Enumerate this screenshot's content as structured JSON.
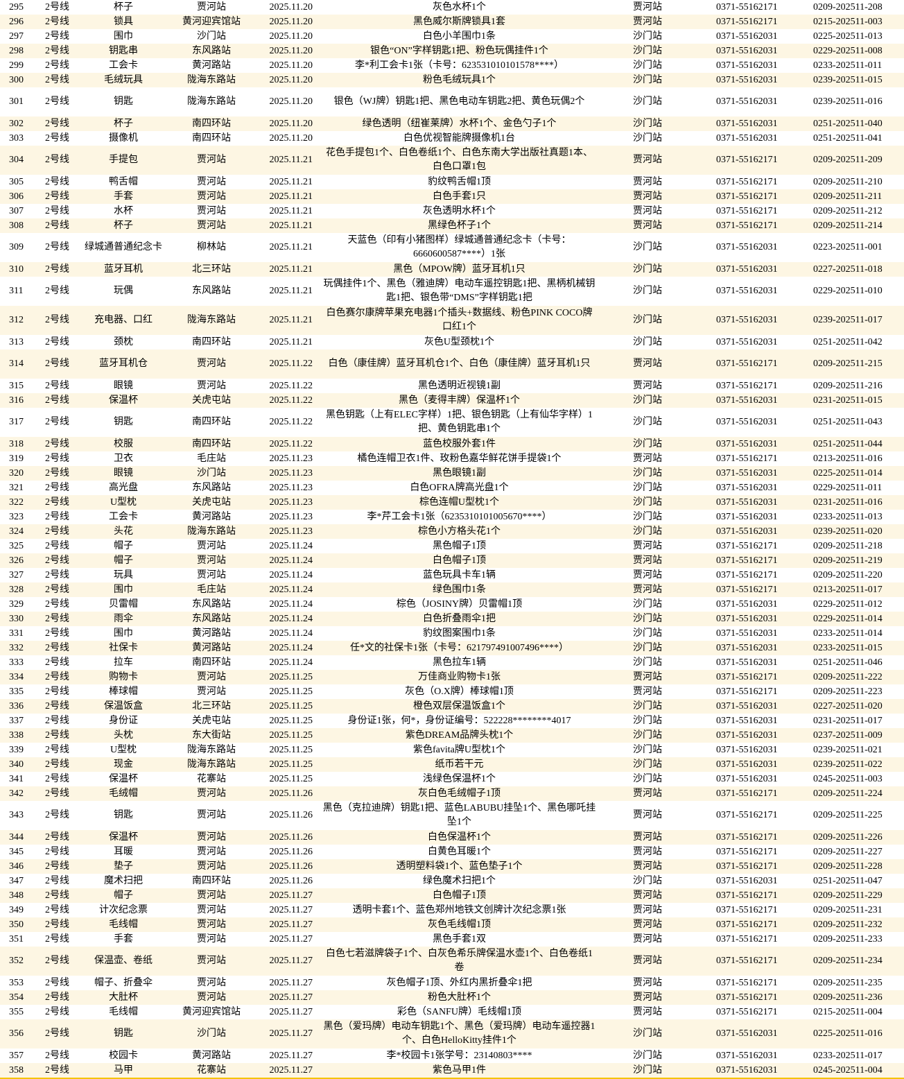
{
  "colors": {
    "alt_row": "#fdf6e3",
    "bottom_border": "#f5c400"
  },
  "rows": [
    {
      "no": "295",
      "line": "2号线",
      "item": "杯子",
      "found": "贾河站",
      "date": "2025.11.20",
      "desc": "灰色水杯1个",
      "claim": "贾河站",
      "phone": "0371-55162171",
      "id": "0209-202511-208"
    },
    {
      "no": "296",
      "line": "2号线",
      "item": "锁具",
      "found": "黄河迎宾馆站",
      "date": "2025.11.20",
      "desc": "黑色威尔斯牌锁具1套",
      "claim": "贾河站",
      "phone": "0371-55162171",
      "id": "0215-202511-003"
    },
    {
      "no": "297",
      "line": "2号线",
      "item": "围巾",
      "found": "沙门站",
      "date": "2025.11.20",
      "desc": "白色小羊围巾1条",
      "claim": "沙门站",
      "phone": "0371-55162031",
      "id": "0225-202511-013"
    },
    {
      "no": "298",
      "line": "2号线",
      "item": "钥匙串",
      "found": "东风路站",
      "date": "2025.11.20",
      "desc": "银色“ON”字样钥匙1把、粉色玩偶挂件1个",
      "claim": "沙门站",
      "phone": "0371-55162031",
      "id": "0229-202511-008"
    },
    {
      "no": "299",
      "line": "2号线",
      "item": "工会卡",
      "found": "黄河路站",
      "date": "2025.11.20",
      "desc": "李*利工会卡1张（卡号：623531010101578****）",
      "claim": "沙门站",
      "phone": "0371-55162031",
      "id": "0233-202511-011"
    },
    {
      "no": "300",
      "line": "2号线",
      "item": "毛绒玩具",
      "found": "陇海东路站",
      "date": "2025.11.20",
      "desc": "粉色毛绒玩具1个",
      "claim": "沙门站",
      "phone": "0371-55162031",
      "id": "0239-202511-015"
    },
    {
      "no": "301",
      "line": "2号线",
      "item": "钥匙",
      "found": "陇海东路站",
      "date": "2025.11.20",
      "desc": "银色（WJ牌）钥匙1把、黑色电动车钥匙2把、黄色玩偶2个",
      "claim": "沙门站",
      "phone": "0371-55162031",
      "id": "0239-202511-016",
      "tall": true
    },
    {
      "no": "302",
      "line": "2号线",
      "item": "杯子",
      "found": "南四环站",
      "date": "2025.11.20",
      "desc": "绿色透明（纽崔莱牌）水杯1个、金色勺子1个",
      "claim": "沙门站",
      "phone": "0371-55162031",
      "id": "0251-202511-040"
    },
    {
      "no": "303",
      "line": "2号线",
      "item": "摄像机",
      "found": "南四环站",
      "date": "2025.11.20",
      "desc": "白色优视智能牌摄像机1台",
      "claim": "沙门站",
      "phone": "0371-55162031",
      "id": "0251-202511-041"
    },
    {
      "no": "304",
      "line": "2号线",
      "item": "手提包",
      "found": "贾河站",
      "date": "2025.11.21",
      "desc": "花色手提包1个、白色卷纸1个、白色东南大学出版社真题1本、白色口罩1包",
      "claim": "贾河站",
      "phone": "0371-55162171",
      "id": "0209-202511-209",
      "tall": true
    },
    {
      "no": "305",
      "line": "2号线",
      "item": "鸭舌帽",
      "found": "贾河站",
      "date": "2025.11.21",
      "desc": "豹纹鸭舌帽1顶",
      "claim": "贾河站",
      "phone": "0371-55162171",
      "id": "0209-202511-210"
    },
    {
      "no": "306",
      "line": "2号线",
      "item": "手套",
      "found": "贾河站",
      "date": "2025.11.21",
      "desc": "白色手套1只",
      "claim": "贾河站",
      "phone": "0371-55162171",
      "id": "0209-202511-211"
    },
    {
      "no": "307",
      "line": "2号线",
      "item": "水杯",
      "found": "贾河站",
      "date": "2025.11.21",
      "desc": "灰色透明水杯1个",
      "claim": "贾河站",
      "phone": "0371-55162171",
      "id": "0209-202511-212"
    },
    {
      "no": "308",
      "line": "2号线",
      "item": "杯子",
      "found": "贾河站",
      "date": "2025.11.21",
      "desc": "黑绿色杯子1个",
      "claim": "贾河站",
      "phone": "0371-55162171",
      "id": "0209-202511-214"
    },
    {
      "no": "309",
      "line": "2号线",
      "item": "绿城通普通纪念卡",
      "found": "柳林站",
      "date": "2025.11.21",
      "desc": "天蓝色（印有小猪图样）绿城通普通纪念卡（卡号：6660600587****）1张",
      "claim": "沙门站",
      "phone": "0371-55162031",
      "id": "0223-202511-001",
      "tall": true
    },
    {
      "no": "310",
      "line": "2号线",
      "item": "蓝牙耳机",
      "found": "北三环站",
      "date": "2025.11.21",
      "desc": "黑色（MPOW牌）蓝牙耳机1只",
      "claim": "沙门站",
      "phone": "0371-55162031",
      "id": "0227-202511-018"
    },
    {
      "no": "311",
      "line": "2号线",
      "item": "玩偶",
      "found": "东风路站",
      "date": "2025.11.21",
      "desc": "玩偶挂件1个、黑色（雅迪牌）电动车遥控钥匙1把、黑柄机械钥匙1把、银色带“DMS”字样钥匙1把",
      "claim": "沙门站",
      "phone": "0371-55162031",
      "id": "0229-202511-010",
      "tall": true
    },
    {
      "no": "312",
      "line": "2号线",
      "item": "充电器、口红",
      "found": "陇海东路站",
      "date": "2025.11.21",
      "desc": "白色赛尔康牌苹果充电器1个插头+数据线、粉色PINK COCO牌口红1个",
      "claim": "沙门站",
      "phone": "0371-55162031",
      "id": "0239-202511-017",
      "tall": true
    },
    {
      "no": "313",
      "line": "2号线",
      "item": "颈枕",
      "found": "南四环站",
      "date": "2025.11.21",
      "desc": "灰色U型颈枕1个",
      "claim": "沙门站",
      "phone": "0371-55162031",
      "id": "0251-202511-042"
    },
    {
      "no": "314",
      "line": "2号线",
      "item": "蓝牙耳机仓",
      "found": "贾河站",
      "date": "2025.11.22",
      "desc": "白色（康佳牌）蓝牙耳机仓1个、白色（康佳牌）蓝牙耳机1只",
      "claim": "贾河站",
      "phone": "0371-55162171",
      "id": "0209-202511-215",
      "tall": true
    },
    {
      "no": "315",
      "line": "2号线",
      "item": "眼镜",
      "found": "贾河站",
      "date": "2025.11.22",
      "desc": "黑色透明近视镜1副",
      "claim": "贾河站",
      "phone": "0371-55162171",
      "id": "0209-202511-216"
    },
    {
      "no": "316",
      "line": "2号线",
      "item": "保温杯",
      "found": "关虎屯站",
      "date": "2025.11.22",
      "desc": "黑色（麦得丰牌）保温杯1个",
      "claim": "沙门站",
      "phone": "0371-55162031",
      "id": "0231-202511-015"
    },
    {
      "no": "317",
      "line": "2号线",
      "item": "钥匙",
      "found": "南四环站",
      "date": "2025.11.22",
      "desc": "黑色钥匙（上有ELEC字样）1把、银色钥匙（上有仙华字样）1把、黄色钥匙串1个",
      "claim": "沙门站",
      "phone": "0371-55162031",
      "id": "0251-202511-043",
      "tall": true
    },
    {
      "no": "318",
      "line": "2号线",
      "item": "校服",
      "found": "南四环站",
      "date": "2025.11.22",
      "desc": "蓝色校服外套1件",
      "claim": "沙门站",
      "phone": "0371-55162031",
      "id": "0251-202511-044"
    },
    {
      "no": "319",
      "line": "2号线",
      "item": "卫衣",
      "found": "毛庄站",
      "date": "2025.11.23",
      "desc": "橘色连帽卫衣1件、玫粉色嘉华鲜花饼手提袋1个",
      "claim": "贾河站",
      "phone": "0371-55162171",
      "id": "0213-202511-016"
    },
    {
      "no": "320",
      "line": "2号线",
      "item": "眼镜",
      "found": "沙门站",
      "date": "2025.11.23",
      "desc": "黑色眼镜1副",
      "claim": "沙门站",
      "phone": "0371-55162031",
      "id": "0225-202511-014"
    },
    {
      "no": "321",
      "line": "2号线",
      "item": "高光盘",
      "found": "东风路站",
      "date": "2025.11.23",
      "desc": "白色OFRA牌高光盘1个",
      "claim": "沙门站",
      "phone": "0371-55162031",
      "id": "0229-202511-011"
    },
    {
      "no": "322",
      "line": "2号线",
      "item": "U型枕",
      "found": "关虎屯站",
      "date": "2025.11.23",
      "desc": "棕色连帽U型枕1个",
      "claim": "沙门站",
      "phone": "0371-55162031",
      "id": "0231-202511-016"
    },
    {
      "no": "323",
      "line": "2号线",
      "item": "工会卡",
      "found": "黄河路站",
      "date": "2025.11.23",
      "desc": "李*芹工会卡1张（6235310101005670****）",
      "claim": "沙门站",
      "phone": "0371-55162031",
      "id": "0233-202511-013"
    },
    {
      "no": "324",
      "line": "2号线",
      "item": "头花",
      "found": "陇海东路站",
      "date": "2025.11.23",
      "desc": "棕色小方格头花1个",
      "claim": "沙门站",
      "phone": "0371-55162031",
      "id": "0239-202511-020"
    },
    {
      "no": "325",
      "line": "2号线",
      "item": "帽子",
      "found": "贾河站",
      "date": "2025.11.24",
      "desc": "黑色帽子1顶",
      "claim": "贾河站",
      "phone": "0371-55162171",
      "id": "0209-202511-218"
    },
    {
      "no": "326",
      "line": "2号线",
      "item": "帽子",
      "found": "贾河站",
      "date": "2025.11.24",
      "desc": "白色帽子1顶",
      "claim": "贾河站",
      "phone": "0371-55162171",
      "id": "0209-202511-219"
    },
    {
      "no": "327",
      "line": "2号线",
      "item": "玩具",
      "found": "贾河站",
      "date": "2025.11.24",
      "desc": "蓝色玩具卡车1辆",
      "claim": "贾河站",
      "phone": "0371-55162171",
      "id": "0209-202511-220"
    },
    {
      "no": "328",
      "line": "2号线",
      "item": "围巾",
      "found": "毛庄站",
      "date": "2025.11.24",
      "desc": "绿色围巾1条",
      "claim": "贾河站",
      "phone": "0371-55162171",
      "id": "0213-202511-017"
    },
    {
      "no": "329",
      "line": "2号线",
      "item": "贝雷帽",
      "found": "东风路站",
      "date": "2025.11.24",
      "desc": "棕色（JOSINY牌）贝雷帽1顶",
      "claim": "沙门站",
      "phone": "0371-55162031",
      "id": "0229-202511-012"
    },
    {
      "no": "330",
      "line": "2号线",
      "item": "雨伞",
      "found": "东风路站",
      "date": "2025.11.24",
      "desc": "白色折叠雨伞1把",
      "claim": "沙门站",
      "phone": "0371-55162031",
      "id": "0229-202511-014"
    },
    {
      "no": "331",
      "line": "2号线",
      "item": "围巾",
      "found": "黄河路站",
      "date": "2025.11.24",
      "desc": "豹纹图案围巾1条",
      "claim": "沙门站",
      "phone": "0371-55162031",
      "id": "0233-202511-014"
    },
    {
      "no": "332",
      "line": "2号线",
      "item": "社保卡",
      "found": "黄河路站",
      "date": "2025.11.24",
      "desc": "任*文的社保卡1张（卡号：621797491007496****）",
      "claim": "沙门站",
      "phone": "0371-55162031",
      "id": "0233-202511-015"
    },
    {
      "no": "333",
      "line": "2号线",
      "item": "拉车",
      "found": "南四环站",
      "date": "2025.11.24",
      "desc": "黑色拉车1辆",
      "claim": "沙门站",
      "phone": "0371-55162031",
      "id": "0251-202511-046"
    },
    {
      "no": "334",
      "line": "2号线",
      "item": "购物卡",
      "found": "贾河站",
      "date": "2025.11.25",
      "desc": "万佳商业购物卡1张",
      "claim": "贾河站",
      "phone": "0371-55162171",
      "id": "0209-202511-222"
    },
    {
      "no": "335",
      "line": "2号线",
      "item": "棒球帽",
      "found": "贾河站",
      "date": "2025.11.25",
      "desc": "灰色（O.X牌）棒球帽1顶",
      "claim": "贾河站",
      "phone": "0371-55162171",
      "id": "0209-202511-223"
    },
    {
      "no": "336",
      "line": "2号线",
      "item": "保温饭盒",
      "found": "北三环站",
      "date": "2025.11.25",
      "desc": "橙色双层保温饭盒1个",
      "claim": "沙门站",
      "phone": "0371-55162031",
      "id": "0227-202511-020"
    },
    {
      "no": "337",
      "line": "2号线",
      "item": "身份证",
      "found": "关虎屯站",
      "date": "2025.11.25",
      "desc": "身份证1张，何*，身份证编号：522228********4017",
      "claim": "沙门站",
      "phone": "0371-55162031",
      "id": "0231-202511-017"
    },
    {
      "no": "338",
      "line": "2号线",
      "item": "头枕",
      "found": "东大街站",
      "date": "2025.11.25",
      "desc": "紫色DREAM品牌头枕1个",
      "claim": "沙门站",
      "phone": "0371-55162031",
      "id": "0237-202511-009"
    },
    {
      "no": "339",
      "line": "2号线",
      "item": "U型枕",
      "found": "陇海东路站",
      "date": "2025.11.25",
      "desc": "紫色favita牌U型枕1个",
      "claim": "沙门站",
      "phone": "0371-55162031",
      "id": "0239-202511-021"
    },
    {
      "no": "340",
      "line": "2号线",
      "item": "现金",
      "found": "陇海东路站",
      "date": "2025.11.25",
      "desc": "纸币若干元",
      "claim": "沙门站",
      "phone": "0371-55162031",
      "id": "0239-202511-022"
    },
    {
      "no": "341",
      "line": "2号线",
      "item": "保温杯",
      "found": "花寨站",
      "date": "2025.11.25",
      "desc": "浅绿色保温杯1个",
      "claim": "沙门站",
      "phone": "0371-55162031",
      "id": "0245-202511-003"
    },
    {
      "no": "342",
      "line": "2号线",
      "item": "毛绒帽",
      "found": "贾河站",
      "date": "2025.11.26",
      "desc": "灰白色毛绒帽子1顶",
      "claim": "贾河站",
      "phone": "0371-55162171",
      "id": "0209-202511-224"
    },
    {
      "no": "343",
      "line": "2号线",
      "item": "钥匙",
      "found": "贾河站",
      "date": "2025.11.26",
      "desc": "黑色（克拉迪牌）钥匙1把、蓝色LABUBU挂坠1个、黑色哪吒挂坠1个",
      "claim": "贾河站",
      "phone": "0371-55162171",
      "id": "0209-202511-225",
      "tall": true
    },
    {
      "no": "344",
      "line": "2号线",
      "item": "保温杯",
      "found": "贾河站",
      "date": "2025.11.26",
      "desc": "白色保温杯1个",
      "claim": "贾河站",
      "phone": "0371-55162171",
      "id": "0209-202511-226"
    },
    {
      "no": "345",
      "line": "2号线",
      "item": "耳暖",
      "found": "贾河站",
      "date": "2025.11.26",
      "desc": "白黄色耳暖1个",
      "claim": "贾河站",
      "phone": "0371-55162171",
      "id": "0209-202511-227"
    },
    {
      "no": "346",
      "line": "2号线",
      "item": "垫子",
      "found": "贾河站",
      "date": "2025.11.26",
      "desc": "透明塑料袋1个、蓝色垫子1个",
      "claim": "贾河站",
      "phone": "0371-55162171",
      "id": "0209-202511-228"
    },
    {
      "no": "347",
      "line": "2号线",
      "item": "魔术扫把",
      "found": "南四环站",
      "date": "2025.11.26",
      "desc": "绿色魔术扫把1个",
      "claim": "沙门站",
      "phone": "0371-55162031",
      "id": "0251-202511-047"
    },
    {
      "no": "348",
      "line": "2号线",
      "item": "帽子",
      "found": "贾河站",
      "date": "2025.11.27",
      "desc": "白色帽子1顶",
      "claim": "贾河站",
      "phone": "0371-55162171",
      "id": "0209-202511-229"
    },
    {
      "no": "349",
      "line": "2号线",
      "item": "计次纪念票",
      "found": "贾河站",
      "date": "2025.11.27",
      "desc": "透明卡套1个、蓝色郑州地铁文创牌计次纪念票1张",
      "claim": "贾河站",
      "phone": "0371-55162171",
      "id": "0209-202511-231"
    },
    {
      "no": "350",
      "line": "2号线",
      "item": "毛线帽",
      "found": "贾河站",
      "date": "2025.11.27",
      "desc": "灰色毛线帽1顶",
      "claim": "贾河站",
      "phone": "0371-55162171",
      "id": "0209-202511-232"
    },
    {
      "no": "351",
      "line": "2号线",
      "item": "手套",
      "found": "贾河站",
      "date": "2025.11.27",
      "desc": "黑色手套1双",
      "claim": "贾河站",
      "phone": "0371-55162171",
      "id": "0209-202511-233"
    },
    {
      "no": "352",
      "line": "2号线",
      "item": "保温壶、卷纸",
      "found": "贾河站",
      "date": "2025.11.27",
      "desc": "白色七若滋牌袋子1个、白灰色希乐牌保温水壶1个、白色卷纸1卷",
      "claim": "贾河站",
      "phone": "0371-55162171",
      "id": "0209-202511-234",
      "tall": true
    },
    {
      "no": "353",
      "line": "2号线",
      "item": "帽子、折叠伞",
      "found": "贾河站",
      "date": "2025.11.27",
      "desc": "灰色帽子1顶、外红内黑折叠伞1把",
      "claim": "贾河站",
      "phone": "0371-55162171",
      "id": "0209-202511-235"
    },
    {
      "no": "354",
      "line": "2号线",
      "item": "大肚杯",
      "found": "贾河站",
      "date": "2025.11.27",
      "desc": "粉色大肚杯1个",
      "claim": "贾河站",
      "phone": "0371-55162171",
      "id": "0209-202511-236"
    },
    {
      "no": "355",
      "line": "2号线",
      "item": "毛线帽",
      "found": "黄河迎宾馆站",
      "date": "2025.11.27",
      "desc": "彩色（SANFU牌）毛线帽1顶",
      "claim": "贾河站",
      "phone": "0371-55162171",
      "id": "0215-202511-004"
    },
    {
      "no": "356",
      "line": "2号线",
      "item": "钥匙",
      "found": "沙门站",
      "date": "2025.11.27",
      "desc": "黑色（爱玛牌）电动车钥匙1个、黑色（爱玛牌）电动车遥控器1个、白色HelloKitty挂件1个",
      "claim": "沙门站",
      "phone": "0371-55162031",
      "id": "0225-202511-016",
      "tall": true
    },
    {
      "no": "357",
      "line": "2号线",
      "item": "校园卡",
      "found": "黄河路站",
      "date": "2025.11.27",
      "desc": "李*校园卡1张学号：23140803****",
      "claim": "沙门站",
      "phone": "0371-55162031",
      "id": "0233-202511-017"
    },
    {
      "no": "358",
      "line": "2号线",
      "item": "马甲",
      "found": "花寨站",
      "date": "2025.11.27",
      "desc": "紫色马甲1件",
      "claim": "沙门站",
      "phone": "0371-55162031",
      "id": "0245-202511-004"
    }
  ]
}
